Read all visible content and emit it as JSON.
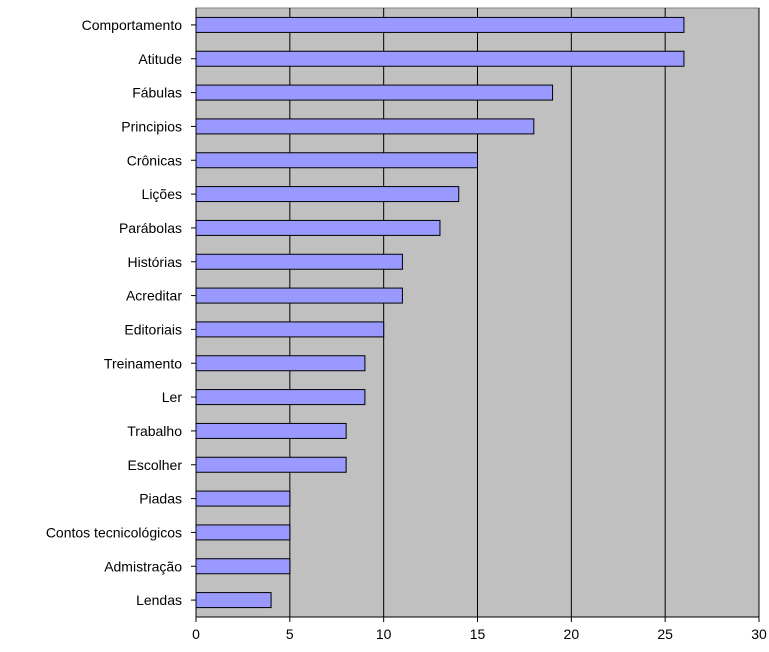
{
  "chart_data": {
    "type": "bar",
    "orientation": "horizontal",
    "categories": [
      "Comportamento",
      "Atitude",
      "Fábulas",
      "Principios",
      "Crônicas",
      "Lições",
      "Parábolas",
      "Histórias",
      "Acreditar",
      "Editoriais",
      "Treinamento",
      "Ler",
      "Trabalho",
      "Escolher",
      "Piadas",
      "Contos tecnicológicos",
      "Admistração",
      "Lendas"
    ],
    "values": [
      26,
      26,
      19,
      18,
      15,
      14,
      13,
      11,
      11,
      10,
      9,
      9,
      8,
      8,
      5,
      5,
      5,
      4
    ],
    "xlim": [
      0,
      30
    ],
    "xticks": [
      "0",
      "5",
      "10",
      "15",
      "20",
      "25",
      "30"
    ],
    "grid": "vertical",
    "legend": "none",
    "title": "",
    "xlabel": "",
    "ylabel": "",
    "colors": {
      "bar_fill": "#9999ff",
      "bar_stroke": "#000000",
      "plot_background": "#c0c0c0",
      "gridline": "#000000",
      "page_background": "#ffffff"
    }
  }
}
